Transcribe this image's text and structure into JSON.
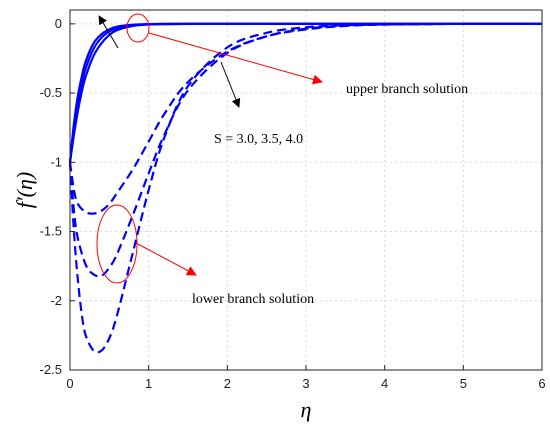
{
  "chart_data": {
    "type": "line",
    "xlabel": "η",
    "ylabel": "f′(η)",
    "xlim": [
      0,
      6
    ],
    "ylim": [
      -2.5,
      0.1
    ],
    "xticks": [
      0,
      1,
      2,
      3,
      4,
      5,
      6
    ],
    "yticks": [
      0,
      -0.5,
      -1,
      -1.5,
      -2,
      -2.5
    ],
    "xtick_labels": [
      "0",
      "1",
      "2",
      "3",
      "4",
      "5",
      "6"
    ],
    "ytick_labels": [
      "0",
      "-0.5",
      "-1",
      "-1.5",
      "-2",
      "-2.5"
    ],
    "grid": true,
    "line_color": "#0000ff",
    "annotation_color": "#ff0000",
    "arrow_color": "#000000",
    "annotations": {
      "upper": "upper branch solution",
      "lower": "lower branch solution",
      "parameter": "S = 3.0, 3.5, 4.0"
    },
    "series": [
      {
        "branch": "upper",
        "style": "solid",
        "x": [
          0,
          0.05,
          0.1,
          0.15,
          0.2,
          0.3,
          0.4,
          0.5,
          0.6,
          0.8,
          1.0,
          1.2,
          1.5,
          2.0,
          3.0,
          6.0
        ],
        "y": [
          -1.0,
          -0.72,
          -0.52,
          -0.38,
          -0.27,
          -0.14,
          -0.075,
          -0.04,
          -0.02,
          -0.006,
          -0.002,
          0,
          0,
          0,
          0,
          0
        ]
      },
      {
        "branch": "upper",
        "style": "solid",
        "x": [
          0,
          0.05,
          0.1,
          0.15,
          0.2,
          0.3,
          0.4,
          0.5,
          0.6,
          0.8,
          1.0,
          1.2,
          1.5,
          2.0,
          3.0,
          6.0
        ],
        "y": [
          -1.0,
          -0.76,
          -0.57,
          -0.43,
          -0.32,
          -0.18,
          -0.1,
          -0.055,
          -0.03,
          -0.01,
          -0.003,
          -0.001,
          0,
          0,
          0,
          0
        ]
      },
      {
        "branch": "upper",
        "style": "solid",
        "x": [
          0,
          0.05,
          0.1,
          0.15,
          0.2,
          0.3,
          0.4,
          0.5,
          0.6,
          0.8,
          1.0,
          1.2,
          1.5,
          2.0,
          3.0,
          6.0
        ],
        "y": [
          -1.0,
          -0.8,
          -0.63,
          -0.49,
          -0.38,
          -0.23,
          -0.14,
          -0.08,
          -0.045,
          -0.015,
          -0.005,
          -0.002,
          0,
          0,
          0,
          0
        ]
      },
      {
        "branch": "lower",
        "style": "dashed",
        "x": [
          0,
          0.05,
          0.1,
          0.2,
          0.3,
          0.4,
          0.5,
          0.6,
          0.8,
          1.0,
          1.2,
          1.5,
          2.0,
          2.5,
          3.0,
          3.5,
          4.0,
          5.0,
          6.0
        ],
        "y": [
          -1.0,
          -1.2,
          -1.3,
          -1.36,
          -1.37,
          -1.35,
          -1.3,
          -1.22,
          -1.05,
          -0.85,
          -0.65,
          -0.42,
          -0.2,
          -0.09,
          -0.04,
          -0.015,
          -0.005,
          0,
          0
        ]
      },
      {
        "branch": "lower",
        "style": "dashed",
        "x": [
          0,
          0.05,
          0.1,
          0.2,
          0.3,
          0.4,
          0.5,
          0.6,
          0.8,
          1.0,
          1.2,
          1.5,
          2.0,
          2.5,
          3.0,
          3.5,
          4.0,
          5.0,
          6.0
        ],
        "y": [
          -1.0,
          -1.35,
          -1.55,
          -1.74,
          -1.81,
          -1.82,
          -1.76,
          -1.66,
          -1.38,
          -1.08,
          -0.8,
          -0.48,
          -0.21,
          -0.09,
          -0.035,
          -0.013,
          -0.005,
          0,
          0
        ]
      },
      {
        "branch": "lower",
        "style": "dashed",
        "x": [
          0,
          0.05,
          0.1,
          0.15,
          0.2,
          0.3,
          0.4,
          0.5,
          0.6,
          0.8,
          1.0,
          1.2,
          1.5,
          2.0,
          2.5,
          3.0,
          3.5,
          4.0,
          5.0,
          6.0
        ],
        "y": [
          -1.0,
          -1.5,
          -1.85,
          -2.1,
          -2.25,
          -2.36,
          -2.36,
          -2.27,
          -2.1,
          -1.65,
          -1.2,
          -0.82,
          -0.45,
          -0.17,
          -0.065,
          -0.025,
          -0.01,
          -0.004,
          0,
          0
        ]
      }
    ]
  }
}
